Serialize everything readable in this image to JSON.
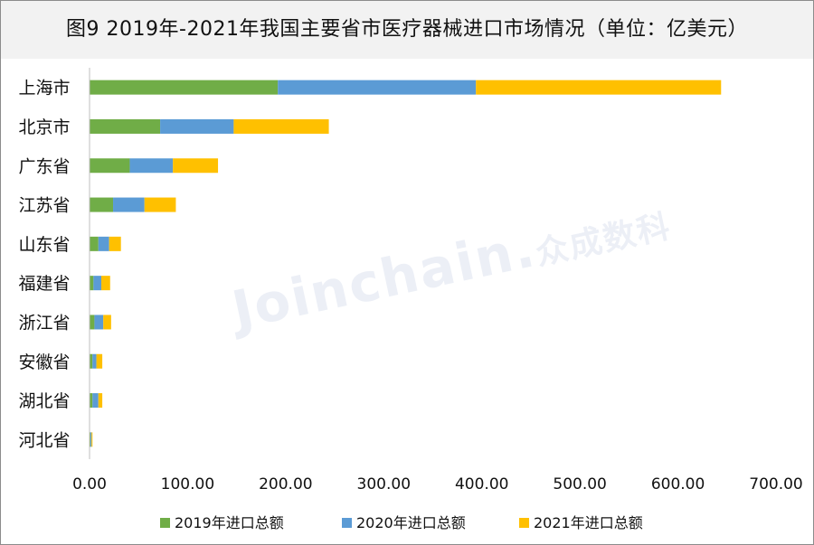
{
  "title": "图9  2019年-2021年我国主要省市医疗器械进口市场情况（单位：亿美元）",
  "watermark": {
    "brand": "Joinchain.",
    "cn": "众成数科"
  },
  "chart_data": {
    "type": "bar",
    "orientation": "horizontal",
    "stacked": true,
    "title": "图9  2019年-2021年我国主要省市医疗器械进口市场情况（单位：亿美元）",
    "categories": [
      "上海市",
      "北京市",
      "广东省",
      "江苏省",
      "山东省",
      "福建省",
      "浙江省",
      "安徽省",
      "湖北省",
      "河北省"
    ],
    "series": [
      {
        "name": "2019年进口总额",
        "color": "#70ad47",
        "values": [
          192,
          72,
          41,
          24,
          9,
          4,
          5,
          3,
          3,
          1
        ]
      },
      {
        "name": "2020年进口总额",
        "color": "#5b9bd5",
        "values": [
          202,
          75,
          44,
          32,
          11,
          8,
          9,
          4,
          6,
          1
        ]
      },
      {
        "name": "2021年进口总额",
        "color": "#ffc000",
        "values": [
          250,
          97,
          46,
          32,
          12,
          9,
          8,
          6,
          4,
          1
        ]
      }
    ],
    "xlim": [
      0,
      700
    ],
    "xticks": [
      "0.00",
      "100.00",
      "200.00",
      "300.00",
      "400.00",
      "500.00",
      "600.00",
      "700.00"
    ],
    "xtick_values": [
      0,
      100,
      200,
      300,
      400,
      500,
      600,
      700
    ],
    "grid": false,
    "legend_position": "bottom"
  }
}
